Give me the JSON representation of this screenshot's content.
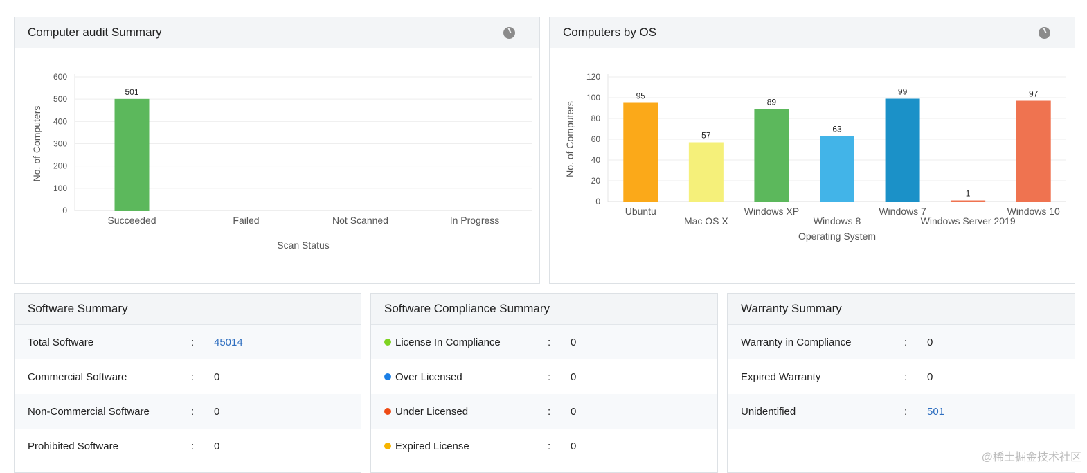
{
  "audit": {
    "title": "Computer audit Summary",
    "icon": "pie-chart-icon"
  },
  "os": {
    "title": "Computers by OS",
    "icon": "pie-chart-icon"
  },
  "chart_data": [
    {
      "type": "bar",
      "title": "",
      "xlabel": "Scan Status",
      "ylabel": "No. of Computers",
      "ylim": [
        0,
        600
      ],
      "yticks": [
        0,
        100,
        200,
        300,
        400,
        500,
        600
      ],
      "grid": true,
      "categories": [
        "Succeeded",
        "Failed",
        "Not Scanned",
        "In Progress"
      ],
      "values": [
        501,
        0,
        0,
        0
      ],
      "data_labels": [
        "501",
        "",
        "",
        ""
      ],
      "colors": [
        "#5cb85c",
        "#5cb85c",
        "#5cb85c",
        "#5cb85c"
      ]
    },
    {
      "type": "bar",
      "title": "",
      "xlabel": "Operating System",
      "ylabel": "No. of Computers",
      "ylim": [
        0,
        120
      ],
      "yticks": [
        0,
        20,
        40,
        60,
        80,
        100,
        120
      ],
      "grid": true,
      "categories": [
        "Ubuntu",
        "Mac OS X",
        "Windows XP",
        "Windows 8",
        "Windows 7",
        "Windows Server 2019",
        "Windows 10"
      ],
      "values": [
        95,
        57,
        89,
        63,
        99,
        1,
        97
      ],
      "data_labels": [
        "95",
        "57",
        "89",
        "63",
        "99",
        "1",
        "97"
      ],
      "colors": [
        "#fba919",
        "#f5f07a",
        "#5cb85c",
        "#42b4e8",
        "#1b91c8",
        "#ef7350",
        "#ef7350"
      ]
    }
  ],
  "software": {
    "title": "Software Summary",
    "rows": [
      {
        "label": "Total Software",
        "sep": ":",
        "value": "45014",
        "link": true
      },
      {
        "label": "Commercial Software",
        "sep": ":",
        "value": "0"
      },
      {
        "label": "Non-Commercial Software",
        "sep": ":",
        "value": "0"
      },
      {
        "label": "Prohibited Software",
        "sep": ":",
        "value": "0"
      }
    ]
  },
  "compliance": {
    "title": "Software Compliance Summary",
    "rows": [
      {
        "label": "License In Compliance",
        "sep": ":",
        "value": "0",
        "color": "#7ed321"
      },
      {
        "label": "Over Licensed",
        "sep": ":",
        "value": "0",
        "color": "#1a7fe6"
      },
      {
        "label": "Under Licensed",
        "sep": ":",
        "value": "0",
        "color": "#ee4a14"
      },
      {
        "label": "Expired License",
        "sep": ":",
        "value": "0",
        "color": "#f7b500"
      }
    ]
  },
  "warranty": {
    "title": "Warranty Summary",
    "rows": [
      {
        "label": "Warranty in Compliance",
        "sep": ":",
        "value": "0"
      },
      {
        "label": "Expired Warranty",
        "sep": ":",
        "value": "0"
      },
      {
        "label": "Unidentified",
        "sep": ":",
        "value": "501",
        "link": true
      }
    ]
  },
  "watermark": "@稀土掘金技术社区"
}
